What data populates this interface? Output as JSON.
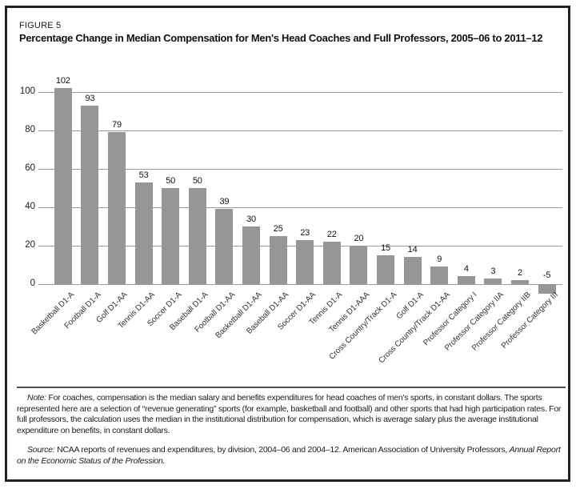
{
  "figure": {
    "label": "FIGURE 5",
    "title": "Percentage Change in Median Compensation for Men's Head Coaches and Full Professors, 2005–06 to 2011–12"
  },
  "chart_data": {
    "type": "bar",
    "title": "Percentage Change in Median Compensation for Men's Head Coaches and Full Professors, 2005–06 to 2011–12",
    "categories": [
      "Basketball D1-A",
      "Football D1-A",
      "Golf D1-AA",
      "Tennis D1-AA",
      "Soccer D1-A",
      "Baseball D1-A",
      "Football D1-AA",
      "Basketball D1-AA",
      "Baseball D1-AA",
      "Soccer D1-AA",
      "Tennis D1-A",
      "Tennis D1-AAA",
      "Cross Country/Track D1-A",
      "Golf D1-A",
      "Cross Country/Track D1-AA",
      "Professor Category I",
      "Professor Category IIA",
      "Professor Category IIB",
      "Professor Category III"
    ],
    "values": [
      102,
      93,
      79,
      53,
      50,
      50,
      39,
      30,
      25,
      23,
      22,
      20,
      15,
      14,
      9,
      4,
      3,
      2,
      -5
    ],
    "xlabel": "",
    "ylabel": "",
    "yticks": [
      0,
      20,
      40,
      60,
      80,
      100
    ],
    "ylim": [
      -12,
      105
    ],
    "grid": true,
    "legend_position": "none",
    "bar_color": "#969696",
    "gridline_color": "#9a9a9a",
    "value_labels_shown": true
  },
  "notes": {
    "note_label": "Note:",
    "note_text": " For coaches, compensation is the median salary and benefits expenditures for head coaches of men's sports, in constant dollars. The sports represented here are a selection of “revenue generating” sports (for example, basketball and football) and other sports that had high participation rates. For full professors, the calculation uses the median in the institutional distribution for compensation, which is average salary plus the average institutional expenditure on benefits, in constant dollars.",
    "source_label": "Source:",
    "source_text": " NCAA reports of revenues and expenditures, by division, 2004–06 and 2004–12. American Association of University Professors, ",
    "source_italic": "Annual Report on the Economic Status of the Profession."
  }
}
